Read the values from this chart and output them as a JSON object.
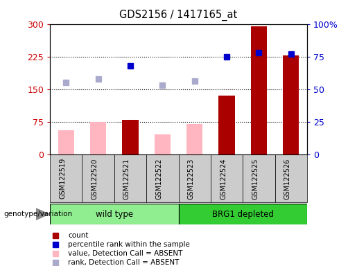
{
  "title": "GDS2156 / 1417165_at",
  "samples": [
    "GSM122519",
    "GSM122520",
    "GSM122521",
    "GSM122522",
    "GSM122523",
    "GSM122524",
    "GSM122525",
    "GSM122526"
  ],
  "bar_values": [
    55,
    75,
    80,
    45,
    70,
    135,
    295,
    228
  ],
  "bar_absent": [
    true,
    true,
    false,
    true,
    true,
    false,
    false,
    false
  ],
  "rank_values": [
    55,
    58,
    68,
    53,
    56,
    75,
    78,
    77
  ],
  "rank_absent": [
    true,
    true,
    false,
    true,
    true,
    false,
    false,
    false
  ],
  "left_ylim": [
    0,
    300
  ],
  "right_ylim": [
    0,
    100
  ],
  "left_yticks": [
    0,
    75,
    150,
    225,
    300
  ],
  "right_yticks": [
    0,
    25,
    50,
    75,
    100
  ],
  "right_yticklabels": [
    "0",
    "25",
    "50",
    "75",
    "100%"
  ],
  "hlines": [
    75,
    150,
    225
  ],
  "bar_color_present": "#AA0000",
  "bar_color_absent": "#FFB6C1",
  "rank_color_present": "#0000CC",
  "rank_color_absent": "#AAAACC",
  "left_label_color": "#CC0000",
  "right_label_color": "#0000CC",
  "background_color": "#FFFFFF",
  "wt_color": "#90EE90",
  "brg_color": "#33CC33",
  "legend_items": [
    {
      "label": "count",
      "color": "#AA0000"
    },
    {
      "label": "percentile rank within the sample",
      "color": "#0000CC"
    },
    {
      "label": "value, Detection Call = ABSENT",
      "color": "#FFB6C1"
    },
    {
      "label": "rank, Detection Call = ABSENT",
      "color": "#AAAACC"
    }
  ],
  "genotype_label": "genotype/variation"
}
